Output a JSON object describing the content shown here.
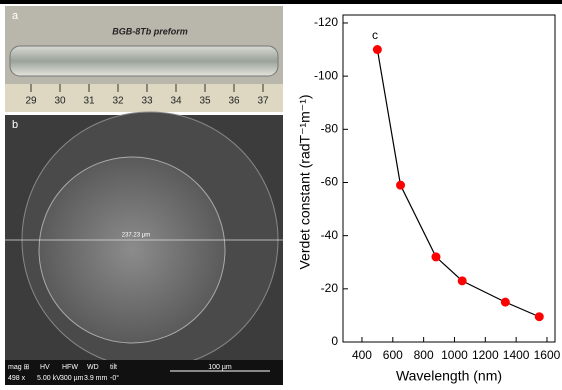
{
  "panel_a": {
    "label": "a",
    "caption": "BGB-8Tb preform",
    "ruler": [
      "29",
      "30",
      "31",
      "32",
      "33",
      "34",
      "35",
      "36",
      "37"
    ]
  },
  "panel_b": {
    "label": "b",
    "measure": "237.23 µm",
    "info": {
      "mag_label": "mag ⊞",
      "mag": "498 x",
      "hv_label": "HV",
      "hv": "5.00 kV",
      "hfw_label": "HFW",
      "hfw": "300 µm",
      "wd_label": "WD",
      "wd": "3.9 mm",
      "tilt_label": "tilt",
      "tilt": "-0°",
      "scale": "100 µm"
    }
  },
  "chart_data": {
    "type": "line",
    "label": "c",
    "x_label": "Wavelength (nm)",
    "y_label": "Verdet constant (radT⁻¹m⁻¹)",
    "x": [
      500,
      650,
      880,
      1050,
      1330,
      1550
    ],
    "series": [
      {
        "name": "Verdet constant",
        "color": "#ff0000",
        "values": [
          -110,
          -59,
          -32,
          -23,
          -15,
          -9.5
        ]
      }
    ],
    "xlim": [
      277,
      1652
    ],
    "ylim": [
      0,
      -123
    ],
    "xticks": [
      400,
      600,
      800,
      1000,
      1200,
      1400,
      1600
    ],
    "yticks": [
      0,
      -20,
      -40,
      -60,
      -80,
      -100,
      -120
    ]
  }
}
